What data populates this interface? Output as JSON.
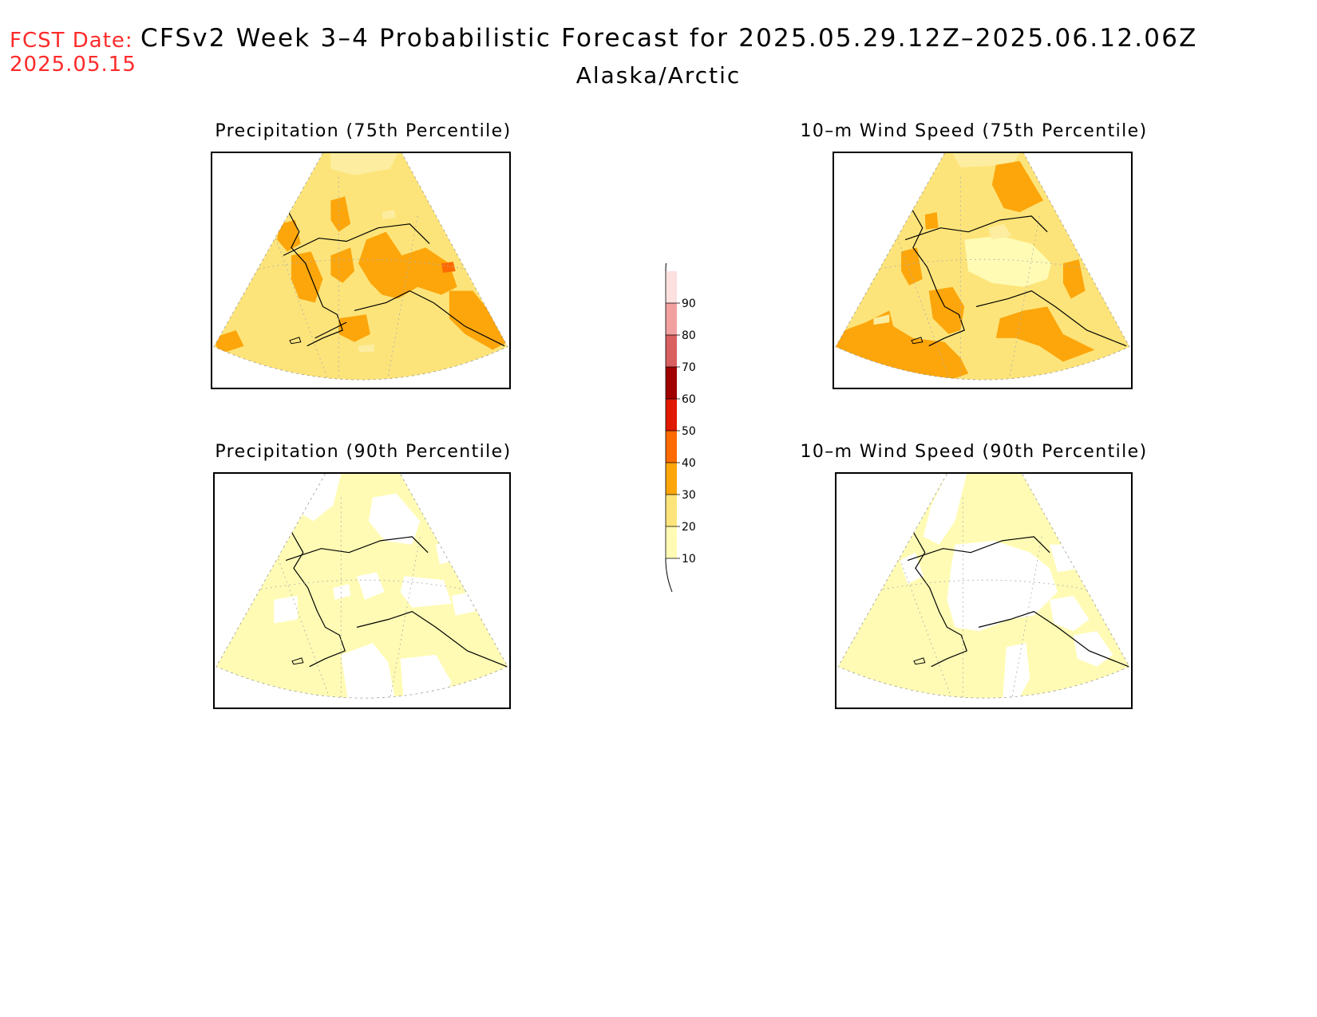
{
  "header": {
    "fcst_label": "FCST Date:",
    "fcst_date": "2025.05.15",
    "title": "CFSv2 Week 3–4 Probabilistic Forecast for 2025.05.29.12Z–2025.06.12.06Z",
    "region": "Alaska/Arctic"
  },
  "panels": [
    {
      "title": "Precipitation (75th Percentile)",
      "percentile": 75,
      "variable": "Precipitation"
    },
    {
      "title": "10–m Wind Speed (75th Percentile)",
      "percentile": 75,
      "variable": "10–m Wind Speed"
    },
    {
      "title": "Precipitation (90th Percentile)",
      "percentile": 90,
      "variable": "Precipitation"
    },
    {
      "title": "10–m Wind Speed (90th Percentile)",
      "percentile": 90,
      "variable": "10–m Wind Speed"
    }
  ],
  "colorbar": {
    "ticks": [
      "10",
      "20",
      "30",
      "40",
      "50",
      "60",
      "70",
      "80",
      "90"
    ],
    "colors": [
      "#fffbb4",
      "#fde47a",
      "#fca60c",
      "#fd6b00",
      "#e01a00",
      "#a00000",
      "#d96060",
      "#f2a0a0",
      "#fde0e0"
    ]
  }
}
